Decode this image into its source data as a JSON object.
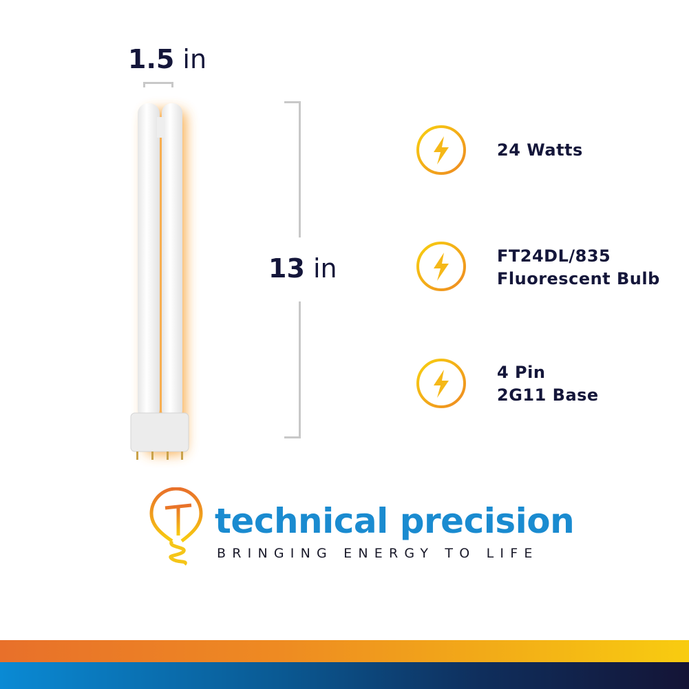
{
  "dimensions": {
    "width": {
      "value": "1.5",
      "unit": "in"
    },
    "height": {
      "value": "13",
      "unit": "in"
    }
  },
  "specs": [
    {
      "icon": "lightning-bolt-icon",
      "lines": [
        "24 Watts"
      ]
    },
    {
      "icon": "lightning-bolt-icon",
      "lines": [
        "FT24DL/835",
        "Fluorescent Bulb"
      ]
    },
    {
      "icon": "lightning-bolt-icon",
      "lines": [
        "4 Pin",
        "2G11 Base"
      ]
    }
  ],
  "brand": {
    "name": "technical precision",
    "tagline": "BRINGING ENERGY TO LIFE"
  },
  "colors": {
    "text": "#14163a",
    "brand_blue": "#1a8bd0",
    "icon_yellow": "#f5c518",
    "icon_orange": "#ee8a22"
  }
}
